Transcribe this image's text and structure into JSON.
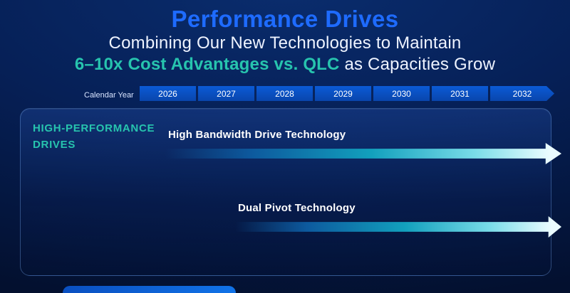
{
  "slide": {
    "title": "Performance Drives",
    "subtitle_line1": "Combining Our New Technologies to Maintain",
    "subtitle_highlight": "6–10x Cost Advantages vs. QLC",
    "subtitle_rest": " as Capacities Grow"
  },
  "timeline": {
    "label": "Calendar Year",
    "years": [
      "2026",
      "2027",
      "2028",
      "2029",
      "2030",
      "2031",
      "2032"
    ]
  },
  "panel": {
    "category": "HIGH-PERFORMANCE DRIVES",
    "arrows": [
      {
        "label": "High Bandwidth Drive Technology"
      },
      {
        "label": "Dual Pivot Technology"
      }
    ]
  },
  "colors": {
    "title_blue": "#1e6bff",
    "teal": "#27c4ae",
    "year_blue": "#0b5bd6",
    "arrow_tip": "#ebfcff"
  }
}
